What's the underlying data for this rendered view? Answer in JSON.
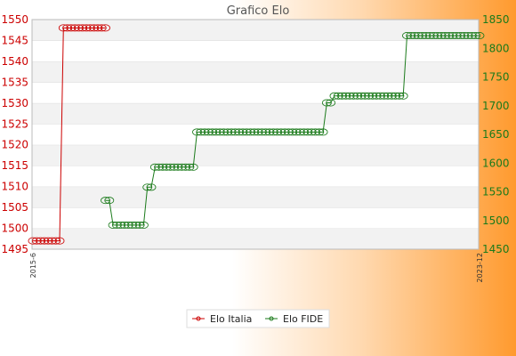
{
  "chart_data": {
    "type": "line",
    "title": "Grafico Elo",
    "xlabel": "",
    "ylabel_left": "",
    "ylabel_right": "",
    "grid": true,
    "legend_position": "bottom",
    "left_axis": {
      "ylim": [
        1495,
        1550
      ],
      "ticks": [
        1495,
        1500,
        1505,
        1510,
        1515,
        1520,
        1525,
        1530,
        1535,
        1540,
        1545,
        1550
      ],
      "color": "#cc0000"
    },
    "right_axis": {
      "ylim": [
        1450,
        1850
      ],
      "ticks": [
        1450,
        1500,
        1550,
        1600,
        1650,
        1700,
        1750,
        1800,
        1850
      ],
      "color": "#1a7a1a"
    },
    "x_start_label": "2015-6",
    "x_end_label": "2023-12",
    "series": [
      {
        "name": "Elo Italia",
        "axis": "left",
        "color": "#cc0000",
        "values": [
          1497,
          1497,
          1497,
          1497,
          1497,
          1497,
          1497,
          1497,
          1548,
          1548,
          1548,
          1548,
          1548,
          1548,
          1548,
          1548,
          1548,
          1548,
          1548,
          1548
        ]
      },
      {
        "name": "Elo FIDE",
        "axis": "right",
        "color": "#1a7a1a",
        "values": [
          null,
          null,
          null,
          null,
          null,
          null,
          null,
          null,
          null,
          null,
          null,
          null,
          null,
          null,
          null,
          null,
          null,
          null,
          null,
          1535,
          1535,
          1492,
          1492,
          1492,
          1492,
          1492,
          1492,
          1492,
          1492,
          1492,
          1558,
          1558,
          1593,
          1593,
          1593,
          1593,
          1593,
          1593,
          1593,
          1593,
          1593,
          1593,
          1593,
          1654,
          1654,
          1654,
          1654,
          1654,
          1654,
          1654,
          1654,
          1654,
          1654,
          1654,
          1654,
          1654,
          1654,
          1654,
          1654,
          1654,
          1654,
          1654,
          1654,
          1654,
          1654,
          1654,
          1654,
          1654,
          1654,
          1654,
          1654,
          1654,
          1654,
          1654,
          1654,
          1654,
          1654,
          1705,
          1705,
          1717,
          1717,
          1717,
          1717,
          1717,
          1717,
          1717,
          1717,
          1717,
          1717,
          1717,
          1717,
          1717,
          1717,
          1717,
          1717,
          1717,
          1717,
          1717,
          1822,
          1822,
          1822,
          1822,
          1822,
          1822,
          1822,
          1822,
          1822,
          1822,
          1822,
          1822,
          1822,
          1822,
          1822,
          1822,
          1822,
          1822,
          1822,
          1822
        ]
      }
    ]
  }
}
